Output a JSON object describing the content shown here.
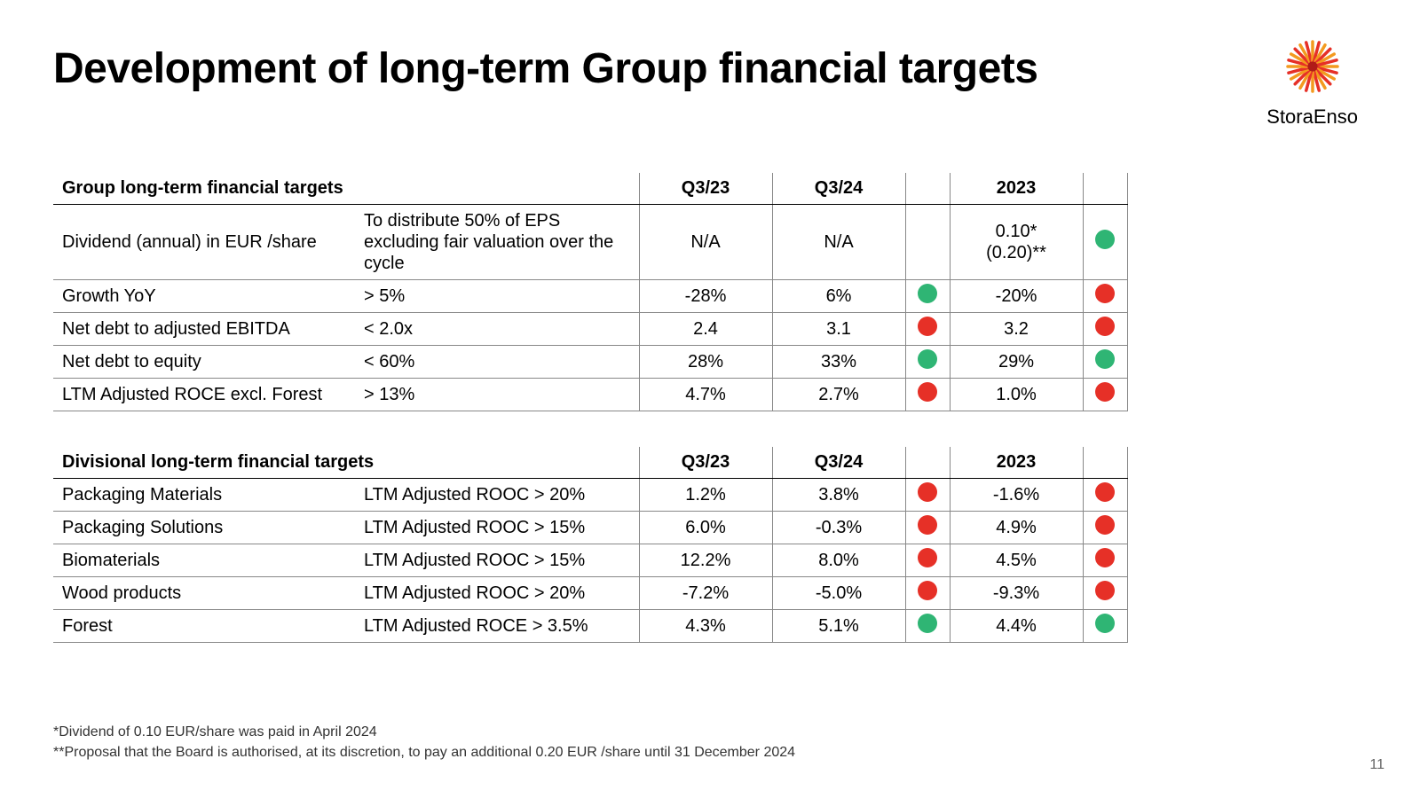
{
  "title": "Development of long-term Group financial targets",
  "brand": "StoraEnso",
  "page_number": "11",
  "colors": {
    "green": "#2fb574",
    "red": "#e63027",
    "background": "#ffffff",
    "text": "#000000"
  },
  "logo": {
    "petal_colors_outer": "#f39a1f",
    "petal_colors_inner": "#e63027",
    "center": "#b01c18"
  },
  "group_table": {
    "header": {
      "title": "Group long-term financial targets",
      "col_q1": "Q3/23",
      "col_q2": "Q3/24",
      "col_year": "2023"
    },
    "rows": [
      {
        "metric": "Dividend (annual) in EUR /share",
        "target": "To distribute 50% of EPS excluding fair valuation over the cycle",
        "q1": "N/A",
        "q2": "N/A",
        "dot1": "",
        "year": "0.10*\n(0.20)**",
        "dot2": "green"
      },
      {
        "metric": "Growth YoY",
        "target": "> 5%",
        "q1": "-28%",
        "q2": "6%",
        "dot1": "green",
        "year": "-20%",
        "dot2": "red"
      },
      {
        "metric": "Net debt to adjusted EBITDA",
        "target": "< 2.0x",
        "q1": "2.4",
        "q2": "3.1",
        "dot1": "red",
        "year": "3.2",
        "dot2": "red"
      },
      {
        "metric": "Net debt to equity",
        "target": "< 60%",
        "q1": "28%",
        "q2": "33%",
        "dot1": "green",
        "year": "29%",
        "dot2": "green"
      },
      {
        "metric": "LTM Adjusted ROCE excl. Forest",
        "target": "> 13%",
        "q1": "4.7%",
        "q2": "2.7%",
        "dot1": "red",
        "year": "1.0%",
        "dot2": "red"
      }
    ]
  },
  "div_table": {
    "header": {
      "title": "Divisional long-term financial targets",
      "col_q1": "Q3/23",
      "col_q2": "Q3/24",
      "col_year": "2023"
    },
    "rows": [
      {
        "metric": "Packaging Materials",
        "target": "LTM Adjusted ROOC > 20%",
        "q1": "1.2%",
        "q2": "3.8%",
        "dot1": "red",
        "year": "-1.6%",
        "dot2": "red"
      },
      {
        "metric": "Packaging Solutions",
        "target": "LTM Adjusted ROOC > 15%",
        "q1": "6.0%",
        "q2": "-0.3%",
        "dot1": "red",
        "year": "4.9%",
        "dot2": "red"
      },
      {
        "metric": "Biomaterials",
        "target": "LTM Adjusted ROOC > 15%",
        "q1": "12.2%",
        "q2": "8.0%",
        "dot1": "red",
        "year": "4.5%",
        "dot2": "red"
      },
      {
        "metric": "Wood products",
        "target": "LTM Adjusted ROOC > 20%",
        "q1": "-7.2%",
        "q2": "-5.0%",
        "dot1": "red",
        "year": "-9.3%",
        "dot2": "red"
      },
      {
        "metric": "Forest",
        "target": "LTM Adjusted ROCE > 3.5%",
        "q1": "4.3%",
        "q2": "5.1%",
        "dot1": "green",
        "year": "4.4%",
        "dot2": "green"
      }
    ]
  },
  "footnotes": {
    "f1": "*Dividend of 0.10 EUR/share was paid in April 2024",
    "f2": "**Proposal that the Board is authorised, at its discretion, to pay an additional 0.20 EUR /share until 31 December 2024"
  }
}
